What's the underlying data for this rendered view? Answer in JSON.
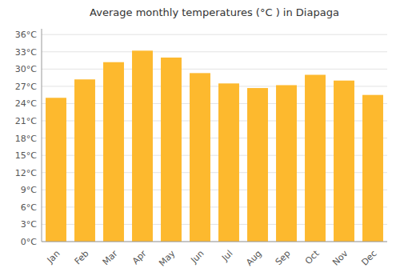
{
  "chart_data": {
    "type": "bar",
    "title": "Average monthly temperatures (°C ) in Diapaga",
    "categories": [
      "Jan",
      "Feb",
      "Mar",
      "Apr",
      "May",
      "Jun",
      "Jul",
      "Aug",
      "Sep",
      "Oct",
      "Nov",
      "Dec"
    ],
    "values": [
      25.0,
      28.2,
      31.2,
      33.2,
      32.0,
      29.3,
      27.5,
      26.7,
      27.2,
      29.0,
      28.0,
      25.5
    ],
    "color": "#FDB92E",
    "ylim": [
      0,
      37
    ],
    "yticks": [
      {
        "value": 0,
        "label": "0°C"
      },
      {
        "value": 3,
        "label": "3°C"
      },
      {
        "value": 6,
        "label": "6°C"
      },
      {
        "value": 9,
        "label": "9°C"
      },
      {
        "value": 12,
        "label": "12°C"
      },
      {
        "value": 15,
        "label": "15°C"
      },
      {
        "value": 18,
        "label": "18°C"
      },
      {
        "value": 21,
        "label": "21°C"
      },
      {
        "value": 24,
        "label": "24°C"
      },
      {
        "value": 27,
        "label": "27°C"
      },
      {
        "value": 30,
        "label": "30°C"
      },
      {
        "value": 33,
        "label": "33°C"
      },
      {
        "value": 36,
        "label": "36°C"
      }
    ],
    "grid": true
  }
}
